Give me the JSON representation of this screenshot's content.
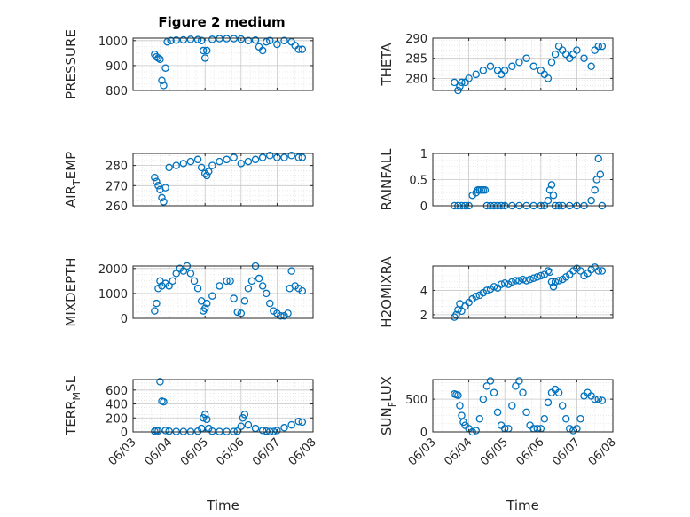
{
  "figure_title": "Figure 2 medium",
  "colors": {
    "marker": "#0072BD",
    "axis": "#262626",
    "grid": "#c8c8c8",
    "background": "#ffffff"
  },
  "chart_data": [
    {
      "type": "scatter",
      "ylabel": {
        "main": "PRESSURE"
      },
      "xlabel": "",
      "ylim": [
        800,
        1010
      ],
      "yticks": [
        800,
        900,
        1000
      ],
      "xlim": [
        0,
        5
      ],
      "xticks": [
        0,
        1,
        2,
        3,
        4,
        5
      ],
      "xticklabels": [
        "06/03",
        "06/04",
        "06/05",
        "06/06",
        "06/07",
        "06/08"
      ],
      "grid": true,
      "minor_grid": true,
      "series": [
        {
          "x": [
            0.6,
            0.65,
            0.7,
            0.75,
            0.8,
            0.85,
            0.9,
            0.95,
            1.05,
            1.2,
            1.4,
            1.6,
            1.8,
            1.9,
            1.95,
            2.0,
            2.05,
            2.2,
            2.4,
            2.6,
            2.8,
            3.0,
            3.2,
            3.4,
            3.5,
            3.6,
            3.7,
            3.8,
            4.0,
            4.2,
            4.4,
            4.5,
            4.6,
            4.7
          ],
          "y": [
            945,
            935,
            930,
            925,
            840,
            820,
            890,
            995,
            1000,
            1002,
            1003,
            1005,
            1004,
            1000,
            960,
            930,
            960,
            1005,
            1008,
            1008,
            1008,
            1006,
            1000,
            1002,
            975,
            960,
            995,
            1000,
            985,
            1000,
            995,
            980,
            965,
            965
          ]
        }
      ]
    },
    {
      "type": "scatter",
      "ylabel": {
        "main": "THETA"
      },
      "xlabel": "",
      "ylim": [
        277,
        290
      ],
      "yticks": [
        280,
        285,
        290
      ],
      "xlim": [
        0,
        5
      ],
      "xticks": [
        0,
        1,
        2,
        3,
        4,
        5
      ],
      "xticklabels": [
        "06/03",
        "06/04",
        "06/05",
        "06/06",
        "06/07",
        "06/08"
      ],
      "grid": true,
      "minor_grid": true,
      "series": [
        {
          "x": [
            0.6,
            0.7,
            0.75,
            0.8,
            0.9,
            1.0,
            1.2,
            1.4,
            1.6,
            1.8,
            1.9,
            2.0,
            2.2,
            2.4,
            2.6,
            2.8,
            3.0,
            3.1,
            3.2,
            3.3,
            3.4,
            3.5,
            3.6,
            3.7,
            3.8,
            3.9,
            4.0,
            4.2,
            4.4,
            4.5,
            4.6,
            4.7
          ],
          "y": [
            279,
            277,
            278,
            279,
            279,
            280,
            281,
            282,
            283,
            282,
            281,
            282,
            283,
            284,
            285,
            283,
            282,
            281,
            280,
            284,
            286,
            288,
            287,
            286,
            285,
            286,
            287,
            285,
            283,
            287,
            288,
            288
          ]
        }
      ]
    },
    {
      "type": "scatter",
      "ylabel": {
        "main": "AIR",
        "sub": "T",
        "rest": "EMP"
      },
      "xlabel": "",
      "ylim": [
        260,
        286
      ],
      "yticks": [
        260,
        270,
        280
      ],
      "xlim": [
        0,
        5
      ],
      "xticks": [
        0,
        1,
        2,
        3,
        4,
        5
      ],
      "xticklabels": [
        "06/03",
        "06/04",
        "06/05",
        "06/06",
        "06/07",
        "06/08"
      ],
      "grid": true,
      "minor_grid": true,
      "series": [
        {
          "x": [
            0.6,
            0.65,
            0.7,
            0.75,
            0.8,
            0.85,
            0.9,
            1.0,
            1.2,
            1.4,
            1.6,
            1.8,
            1.9,
            2.0,
            2.05,
            2.1,
            2.2,
            2.4,
            2.6,
            2.8,
            3.0,
            3.2,
            3.4,
            3.6,
            3.8,
            4.0,
            4.2,
            4.4,
            4.6,
            4.7
          ],
          "y": [
            274,
            272,
            270,
            268,
            264,
            262,
            269,
            279,
            280,
            281,
            282,
            283,
            279,
            276,
            275,
            277,
            280,
            282,
            283,
            284,
            281,
            282,
            283,
            284,
            285,
            284,
            284,
            285,
            284,
            284
          ]
        }
      ]
    },
    {
      "type": "scatter",
      "ylabel": {
        "main": "RAINFALL"
      },
      "xlabel": "",
      "ylim": [
        0,
        1
      ],
      "yticks": [
        0,
        0.5,
        1
      ],
      "yticklabels": [
        "0",
        "0.5",
        "1"
      ],
      "xlim": [
        0,
        5
      ],
      "xticks": [
        0,
        1,
        2,
        3,
        4,
        5
      ],
      "xticklabels": [
        "06/03",
        "06/04",
        "06/05",
        "06/06",
        "06/07",
        "06/08"
      ],
      "grid": true,
      "minor_grid": true,
      "series": [
        {
          "x": [
            0.6,
            0.7,
            0.8,
            0.9,
            1.0,
            1.1,
            1.2,
            1.25,
            1.3,
            1.35,
            1.4,
            1.45,
            1.5,
            1.6,
            1.7,
            1.8,
            1.9,
            2.0,
            2.2,
            2.4,
            2.6,
            2.8,
            3.0,
            3.1,
            3.2,
            3.25,
            3.3,
            3.35,
            3.4,
            3.5,
            3.6,
            3.8,
            4.0,
            4.2,
            4.4,
            4.5,
            4.55,
            4.6,
            4.65,
            4.7
          ],
          "y": [
            0,
            0,
            0,
            0,
            0,
            0.2,
            0.25,
            0.3,
            0.3,
            0.3,
            0.3,
            0.3,
            0,
            0,
            0,
            0,
            0,
            0,
            0,
            0,
            0,
            0,
            0,
            0,
            0.1,
            0.3,
            0.4,
            0.2,
            0,
            0,
            0,
            0,
            0,
            0,
            0.1,
            0.3,
            0.5,
            0.9,
            0.6,
            0
          ]
        }
      ]
    },
    {
      "type": "scatter",
      "ylabel": {
        "main": "MIXDEPTH"
      },
      "xlabel": "",
      "ylim": [
        0,
        2100
      ],
      "yticks": [
        0,
        1000,
        2000
      ],
      "xlim": [
        0,
        5
      ],
      "xticks": [
        0,
        1,
        2,
        3,
        4,
        5
      ],
      "xticklabels": [
        "06/03",
        "06/04",
        "06/05",
        "06/06",
        "06/07",
        "06/08"
      ],
      "grid": true,
      "minor_grid": true,
      "series": [
        {
          "x": [
            0.6,
            0.65,
            0.7,
            0.75,
            0.8,
            0.9,
            1.0,
            1.1,
            1.2,
            1.3,
            1.4,
            1.5,
            1.6,
            1.7,
            1.8,
            1.9,
            1.95,
            2.0,
            2.05,
            2.2,
            2.4,
            2.6,
            2.7,
            2.8,
            2.9,
            3.0,
            3.1,
            3.2,
            3.3,
            3.4,
            3.5,
            3.6,
            3.7,
            3.8,
            3.9,
            4.0,
            4.1,
            4.2,
            4.3,
            4.35,
            4.4,
            4.5,
            4.6,
            4.7
          ],
          "y": [
            300,
            600,
            1200,
            1500,
            1300,
            1400,
            1300,
            1500,
            1800,
            2000,
            1900,
            2100,
            1800,
            1500,
            1200,
            700,
            300,
            400,
            600,
            900,
            1300,
            1500,
            1500,
            800,
            250,
            200,
            700,
            1200,
            1500,
            2100,
            1600,
            1300,
            1000,
            600,
            300,
            200,
            100,
            100,
            200,
            1200,
            1900,
            1300,
            1200,
            1100
          ]
        }
      ]
    },
    {
      "type": "scatter",
      "ylabel": {
        "main": "H2OMIXRA"
      },
      "xlabel": "",
      "ylim": [
        1.7,
        6
      ],
      "yticks": [
        2,
        4
      ],
      "xlim": [
        0,
        5
      ],
      "xticks": [
        0,
        1,
        2,
        3,
        4,
        5
      ],
      "xticklabels": [
        "06/03",
        "06/04",
        "06/05",
        "06/06",
        "06/07",
        "06/08"
      ],
      "grid": true,
      "minor_grid": true,
      "series": [
        {
          "x": [
            0.6,
            0.65,
            0.7,
            0.75,
            0.8,
            0.9,
            1.0,
            1.1,
            1.2,
            1.3,
            1.4,
            1.5,
            1.6,
            1.7,
            1.8,
            1.9,
            2.0,
            2.1,
            2.2,
            2.3,
            2.4,
            2.5,
            2.6,
            2.7,
            2.8,
            2.9,
            3.0,
            3.1,
            3.2,
            3.25,
            3.3,
            3.35,
            3.4,
            3.5,
            3.6,
            3.7,
            3.8,
            3.9,
            4.0,
            4.1,
            4.2,
            4.3,
            4.4,
            4.5,
            4.6,
            4.7
          ],
          "y": [
            1.8,
            2.0,
            2.4,
            2.9,
            2.3,
            2.7,
            3.0,
            3.3,
            3.5,
            3.6,
            3.8,
            4.0,
            4.1,
            4.3,
            4.2,
            4.5,
            4.6,
            4.5,
            4.7,
            4.8,
            4.8,
            4.9,
            4.8,
            4.9,
            5.0,
            5.1,
            5.2,
            5.3,
            5.6,
            5.5,
            4.7,
            4.3,
            4.7,
            4.8,
            4.9,
            5.1,
            5.3,
            5.6,
            5.8,
            5.6,
            5.2,
            5.4,
            5.7,
            5.9,
            5.6,
            5.6
          ]
        }
      ]
    },
    {
      "type": "scatter",
      "ylabel": {
        "main": "TERR",
        "sub": "M",
        "rest": "SL"
      },
      "xlabel": "Time",
      "ylim": [
        0,
        750
      ],
      "yticks": [
        0,
        200,
        400,
        600
      ],
      "xlim": [
        0,
        5
      ],
      "xticks": [
        0,
        1,
        2,
        3,
        4,
        5
      ],
      "xticklabels": [
        "06/03",
        "06/04",
        "06/05",
        "06/06",
        "06/07",
        "06/08"
      ],
      "grid": true,
      "minor_grid": true,
      "series": [
        {
          "x": [
            0.6,
            0.65,
            0.7,
            0.75,
            0.8,
            0.85,
            0.9,
            1.0,
            1.2,
            1.4,
            1.6,
            1.8,
            1.9,
            1.95,
            2.0,
            2.05,
            2.1,
            2.2,
            2.4,
            2.6,
            2.8,
            2.9,
            3.0,
            3.05,
            3.1,
            3.2,
            3.4,
            3.6,
            3.7,
            3.8,
            3.9,
            4.0,
            4.2,
            4.4,
            4.6,
            4.7
          ],
          "y": [
            10,
            20,
            15,
            720,
            440,
            430,
            20,
            10,
            5,
            5,
            5,
            10,
            50,
            200,
            250,
            180,
            50,
            10,
            5,
            5,
            5,
            10,
            80,
            200,
            250,
            100,
            50,
            20,
            10,
            5,
            5,
            20,
            60,
            100,
            150,
            140
          ]
        }
      ]
    },
    {
      "type": "scatter",
      "ylabel": {
        "main": "SUN",
        "sub": "F",
        "rest": "LUX"
      },
      "xlabel": "Time",
      "ylim": [
        0,
        800
      ],
      "yticks": [
        0,
        500
      ],
      "xlim": [
        0,
        5
      ],
      "xticks": [
        0,
        1,
        2,
        3,
        4,
        5
      ],
      "xticklabels": [
        "06/03",
        "06/04",
        "06/05",
        "06/06",
        "06/07",
        "06/08"
      ],
      "grid": true,
      "minor_grid": true,
      "series": [
        {
          "x": [
            0.6,
            0.65,
            0.7,
            0.75,
            0.8,
            0.85,
            0.9,
            1.0,
            1.1,
            1.2,
            1.3,
            1.4,
            1.5,
            1.6,
            1.7,
            1.8,
            1.9,
            2.0,
            2.1,
            2.2,
            2.3,
            2.4,
            2.5,
            2.6,
            2.7,
            2.8,
            2.9,
            3.0,
            3.1,
            3.2,
            3.3,
            3.4,
            3.5,
            3.6,
            3.7,
            3.8,
            3.9,
            4.0,
            4.1,
            4.2,
            4.3,
            4.4,
            4.5,
            4.6,
            4.7
          ],
          "y": [
            580,
            570,
            560,
            400,
            250,
            150,
            100,
            50,
            0,
            20,
            200,
            500,
            700,
            780,
            600,
            300,
            100,
            50,
            50,
            400,
            700,
            780,
            600,
            300,
            100,
            50,
            50,
            50,
            200,
            450,
            600,
            650,
            600,
            400,
            200,
            50,
            20,
            50,
            200,
            550,
            600,
            550,
            500,
            500,
            480
          ]
        }
      ]
    }
  ]
}
